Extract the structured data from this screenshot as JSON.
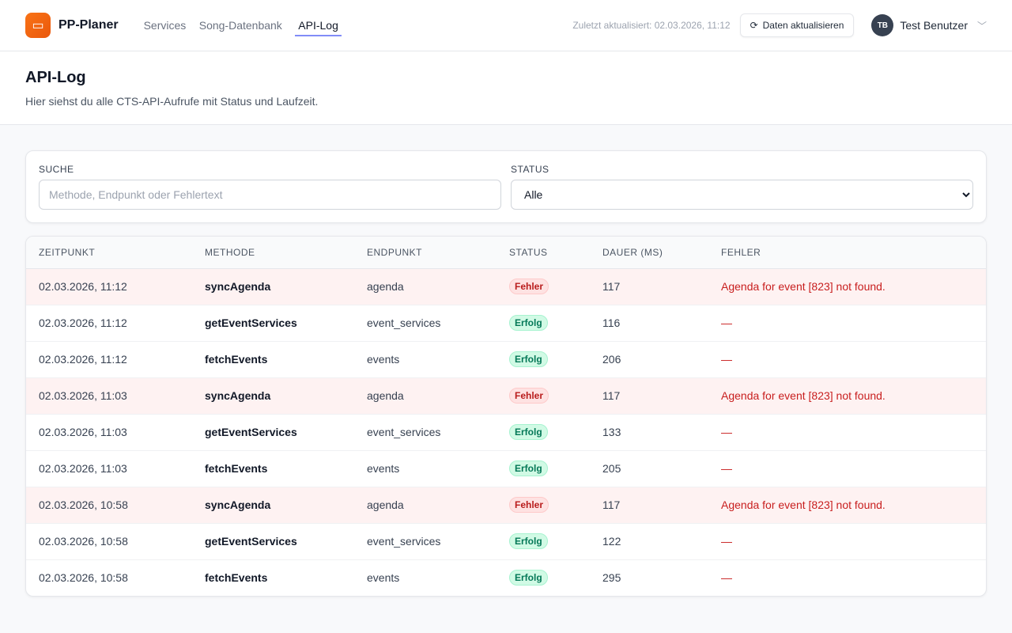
{
  "app": {
    "name": "PP-Planer",
    "logo_icon": "presentation-board-icon"
  },
  "nav": [
    {
      "label": "Services"
    },
    {
      "label": "Song-Datenbank"
    },
    {
      "label": "API-Log",
      "active": true
    }
  ],
  "header": {
    "last_updated": "Zuletzt aktualisiert: 02.03.2026, 11:12",
    "refresh_label": "Daten aktualisieren",
    "user_initials": "TB",
    "user_name": "Test Benutzer"
  },
  "page": {
    "title": "API-Log",
    "subtitle": "Hier siehst du alle CTS-API-Aufrufe mit Status und Laufzeit."
  },
  "filters": {
    "search_label": "SUCHE",
    "search_placeholder": "Methode, Endpunkt oder Fehlertext",
    "search_value": "",
    "status_label": "STATUS",
    "status_value": "Alle"
  },
  "table": {
    "columns": [
      "ZEITPUNKT",
      "METHODE",
      "ENDPUNKT",
      "STATUS",
      "DAUER (MS)",
      "FEHLER"
    ],
    "rows": [
      {
        "time": "02.03.2026, 11:12",
        "method": "syncAgenda",
        "endpoint": "agenda",
        "status": "Fehler",
        "duration": "117",
        "error": "Agenda for event [823] not found."
      },
      {
        "time": "02.03.2026, 11:12",
        "method": "getEventServices",
        "endpoint": "event_services",
        "status": "Erfolg",
        "duration": "116",
        "error": "—"
      },
      {
        "time": "02.03.2026, 11:12",
        "method": "fetchEvents",
        "endpoint": "events",
        "status": "Erfolg",
        "duration": "206",
        "error": "—"
      },
      {
        "time": "02.03.2026, 11:03",
        "method": "syncAgenda",
        "endpoint": "agenda",
        "status": "Fehler",
        "duration": "117",
        "error": "Agenda for event [823] not found."
      },
      {
        "time": "02.03.2026, 11:03",
        "method": "getEventServices",
        "endpoint": "event_services",
        "status": "Erfolg",
        "duration": "133",
        "error": "—"
      },
      {
        "time": "02.03.2026, 11:03",
        "method": "fetchEvents",
        "endpoint": "events",
        "status": "Erfolg",
        "duration": "205",
        "error": "—"
      },
      {
        "time": "02.03.2026, 10:58",
        "method": "syncAgenda",
        "endpoint": "agenda",
        "status": "Fehler",
        "duration": "117",
        "error": "Agenda for event [823] not found."
      },
      {
        "time": "02.03.2026, 10:58",
        "method": "getEventServices",
        "endpoint": "event_services",
        "status": "Erfolg",
        "duration": "122",
        "error": "—"
      },
      {
        "time": "02.03.2026, 10:58",
        "method": "fetchEvents",
        "endpoint": "events",
        "status": "Erfolg",
        "duration": "295",
        "error": "—"
      }
    ]
  },
  "colors": {
    "accent": "#818cf8",
    "brand": "#f97316",
    "error": "#b91c1c",
    "success": "#047857"
  }
}
